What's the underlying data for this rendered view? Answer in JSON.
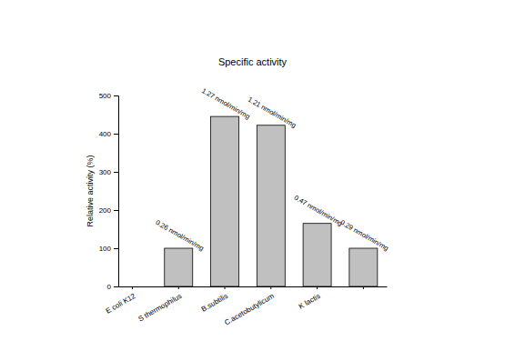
{
  "chart_data": {
    "type": "bar",
    "title": "Specific activity",
    "y_label": "Relative activity (%)",
    "categories": [
      "E coli K12",
      "S thermophilus",
      "B.subtilis",
      "C.acetobutylicum",
      "K lactis",
      null
    ],
    "values": [
      null,
      100,
      445,
      422,
      165,
      100
    ],
    "annotations": [
      null,
      "0.26 nmol/min/mg",
      "1.27 nmol/min/mg",
      "1.21 nmol/min/mg",
      "0.47 nmol/min/mg",
      "0.29 nmol/min/mg"
    ],
    "color": "#c0c0c0",
    "ylim": [
      0,
      500
    ],
    "yticks": [
      0,
      100,
      200,
      300,
      400,
      500
    ],
    "grid": false
  }
}
